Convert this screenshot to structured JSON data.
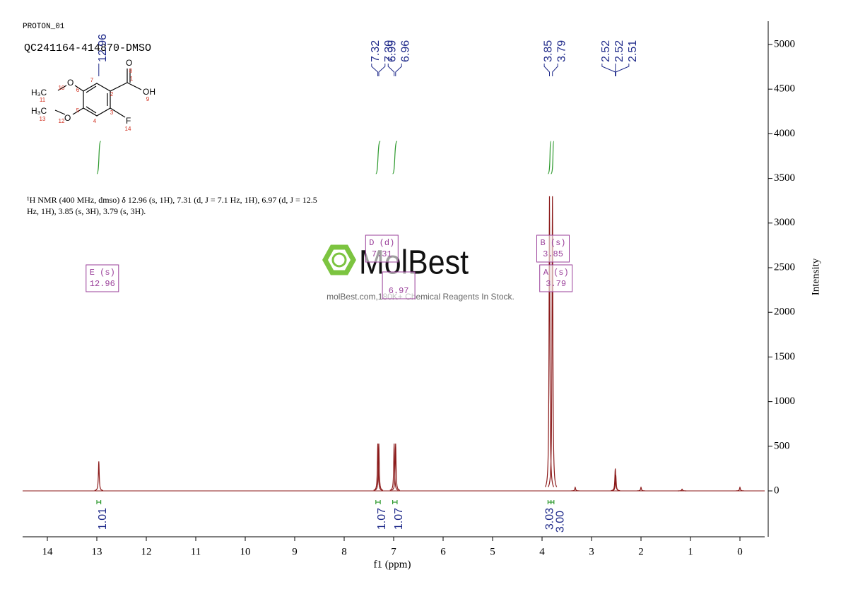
{
  "header": {
    "experiment": "PROTON_01",
    "sample": "QC241164-414870-DMSO"
  },
  "description": "¹H NMR (400 MHz, dmso) δ 12.96 (s, 1H), 7.31 (d, J = 7.1 Hz, 1H), 6.97 (d, J = 12.5 Hz, 1H), 3.85 (s, 3H), 3.79 (s, 3H).",
  "watermark": {
    "brand": "MolBest",
    "tagline": "molBest.com,180K+ Chemical Reagents In Stock."
  },
  "structure": {
    "labels": [
      "O",
      "OH",
      "F",
      "O",
      "H₃C",
      "O",
      "H₃C"
    ],
    "atom_numbers": [
      1,
      2,
      3,
      4,
      5,
      6,
      7,
      8,
      9,
      10,
      11,
      12,
      13,
      14
    ]
  },
  "chart_data": {
    "type": "nmr",
    "xlabel": "f1 (ppm)",
    "ylabel": "Intensity",
    "color": "#8b1a1a",
    "xlim": [
      14.5,
      -0.5
    ],
    "xticks": [
      14,
      13,
      12,
      11,
      10,
      9,
      8,
      7,
      6,
      5,
      4,
      3,
      2,
      1,
      0
    ],
    "ylim": [
      -514,
      5261
    ],
    "yticks": [
      0,
      500,
      1000,
      1500,
      2000,
      2500,
      3000,
      3500,
      4000,
      4500,
      5000
    ],
    "peaks": {
      "x": [
        12.96,
        7.32,
        7.3,
        6.99,
        6.96,
        3.85,
        3.79,
        3.33,
        2.52,
        2.51,
        2.0,
        1.17,
        0.0
      ],
      "values": [
        330,
        530,
        530,
        530,
        530,
        3300,
        3300,
        40,
        250,
        180,
        40,
        20,
        40
      ]
    },
    "peak_labels": [
      12.96,
      7.32,
      {
        "value": 7.3,
        "label": "7.30"
      },
      6.99,
      6.96,
      3.85,
      3.79,
      2.52,
      2.52,
      2.51
    ],
    "multiplets": [
      {
        "name": "E (s)",
        "shift": 12.96
      },
      {
        "name": "D (d)",
        "shift": 7.31
      },
      {
        "shift": 6.97
      },
      {
        "name": "B (s)",
        "shift": 3.85
      },
      {
        "name": "A (s)",
        "shift": 3.79
      }
    ],
    "integrals": {
      "ranges": [
        [
          13.0,
          12.92
        ],
        [
          7.36,
          7.27
        ],
        [
          7.02,
          6.93
        ],
        [
          3.88,
          3.82
        ],
        [
          3.82,
          3.76
        ]
      ],
      "values": [
        1.01,
        1.07,
        1.07,
        3.03,
        3.0
      ],
      "value_labels": [
        "1.01",
        "1.07",
        "1.07",
        "3.03",
        "3.00"
      ]
    }
  }
}
